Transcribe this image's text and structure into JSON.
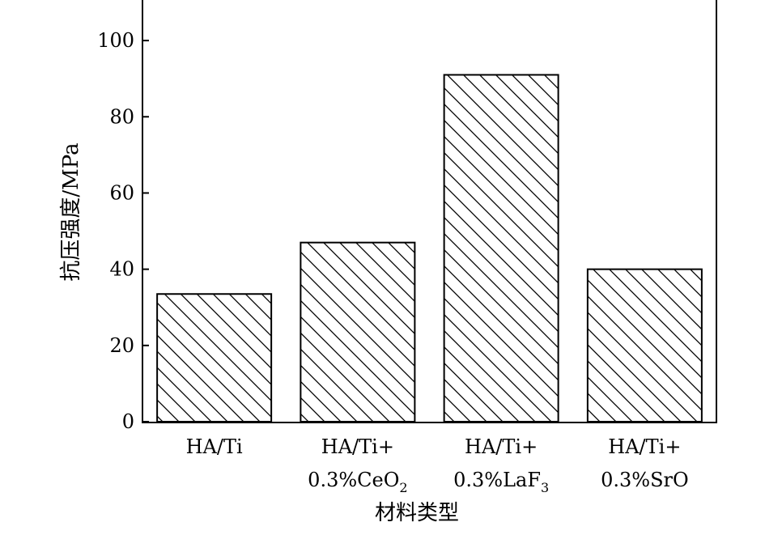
{
  "chart_data": {
    "type": "bar",
    "title": "",
    "xlabel": "材料类型",
    "ylabel": "抗压强度/MPa",
    "ylim": [
      0,
      110
    ],
    "yticks": [
      0,
      20,
      40,
      60,
      80,
      100
    ],
    "grid": false,
    "legend": "none",
    "bar_fill": "hatched",
    "colors": {
      "bar_edge": "#000000",
      "hatch": "#000000",
      "background": "#ffffff"
    },
    "categories": [
      {
        "line1": "HA/Ti",
        "line2": "",
        "subscript": ""
      },
      {
        "line1": "HA/Ti+",
        "line2": "0.3%CeO",
        "subscript": "2"
      },
      {
        "line1": "HA/Ti+",
        "line2": "0.3%LaF",
        "subscript": "3"
      },
      {
        "line1": "HA/Ti+",
        "line2": "0.3%SrO",
        "subscript": ""
      }
    ],
    "values": [
      33.5,
      47,
      91,
      40
    ]
  }
}
